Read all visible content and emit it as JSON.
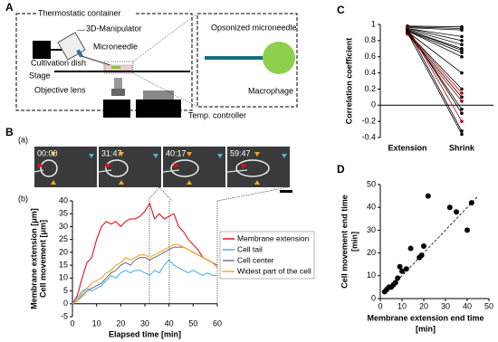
{
  "panel_labels": [
    "A",
    "B",
    "C",
    "D"
  ],
  "schematic": {
    "container": "Thermostatic container",
    "manipulator": "3D-Manipulator",
    "microneedle": "Microneedle",
    "dish": "Cultivation dish",
    "stage": "Stage",
    "objective": "Objective lens",
    "controller": "Temp. controller",
    "inset_needle": "Opsonized microneedle",
    "inset_cell": "Macrophage"
  },
  "micrographs": {
    "label": "(a)",
    "times": [
      "00:00",
      "31:47",
      "40:17",
      "59:47"
    ]
  },
  "chart_data": [
    {
      "type": "line",
      "label": "(b)",
      "y_label": [
        "Membrane extension [μm]",
        "Cell movement [μm]"
      ],
      "x_label": "Elapsed time [min]",
      "x": [
        0,
        2,
        4,
        6,
        8,
        10,
        12,
        14,
        16,
        18,
        20,
        22,
        24,
        26,
        28,
        30,
        32,
        34,
        36,
        38,
        40,
        42,
        44,
        46,
        48,
        50,
        52,
        54,
        56,
        58,
        60
      ],
      "series": [
        {
          "name": "Membrane extension",
          "color": "#e8101a",
          "values": [
            0,
            3,
            10,
            16,
            18,
            25,
            30,
            32,
            31,
            32,
            30,
            32,
            33,
            33,
            34,
            36,
            39,
            33,
            35,
            33,
            34,
            35,
            30,
            28,
            25,
            23,
            21,
            18,
            17,
            16,
            15
          ]
        },
        {
          "name": "Cell tail",
          "color": "#4fb3e8",
          "values": [
            0,
            2,
            5,
            6,
            5,
            6,
            7,
            9,
            11,
            10,
            12,
            13,
            12,
            13,
            13,
            12,
            11,
            13,
            12,
            15,
            17,
            15,
            14,
            13,
            12,
            13,
            12,
            11,
            12,
            11,
            11
          ]
        },
        {
          "name": "Cell center",
          "color": "#7a7096",
          "values": [
            0,
            1,
            3,
            5,
            6,
            7,
            8,
            10,
            12,
            13,
            15,
            16,
            15,
            17,
            18,
            18,
            17,
            18,
            19,
            20,
            21,
            22,
            22,
            22,
            21,
            20,
            19,
            18,
            17,
            16,
            15
          ]
        },
        {
          "name": "Widest part of the cell",
          "color": "#f0a81c",
          "values": [
            0,
            1,
            4,
            6,
            8,
            9,
            10,
            12,
            13,
            15,
            16,
            18,
            17,
            18,
            19,
            19,
            18,
            19,
            20,
            21,
            22,
            23,
            23,
            22,
            21,
            20,
            19,
            18,
            17,
            16,
            14
          ]
        }
      ],
      "xlim": [
        0,
        60
      ],
      "xticks": [
        0,
        10,
        20,
        30,
        40,
        50,
        60
      ],
      "ylim": [
        -5,
        40
      ],
      "yticks": [
        -5,
        0,
        5,
        10,
        15,
        20,
        25,
        30,
        35,
        40
      ],
      "legend": "right"
    },
    {
      "type": "slope",
      "y_label": "Correlation coefficient",
      "categories": [
        "Extension",
        "Shrink"
      ],
      "series": [
        {
          "color": "#000000",
          "values": [
            0.98,
            0.97
          ]
        },
        {
          "color": "#000000",
          "values": [
            0.97,
            0.95
          ]
        },
        {
          "color": "#000000",
          "values": [
            0.96,
            0.93
          ]
        },
        {
          "color": "#000000",
          "values": [
            0.95,
            0.85
          ]
        },
        {
          "color": "#000000",
          "values": [
            0.95,
            0.8
          ]
        },
        {
          "color": "#000000",
          "values": [
            0.94,
            0.75
          ]
        },
        {
          "color": "#000000",
          "values": [
            0.93,
            0.7
          ]
        },
        {
          "color": "#000000",
          "values": [
            0.93,
            0.68
          ]
        },
        {
          "color": "#000000",
          "values": [
            0.92,
            0.65
          ]
        },
        {
          "color": "#000000",
          "values": [
            0.92,
            0.6
          ]
        },
        {
          "color": "#000000",
          "values": [
            0.91,
            0.4
          ]
        },
        {
          "color": "#000000",
          "values": [
            0.9,
            0.2
          ]
        },
        {
          "color": "#c00000",
          "values": [
            0.9,
            0.15
          ]
        },
        {
          "color": "#000000",
          "values": [
            0.89,
            0.1
          ]
        },
        {
          "color": "#c00000",
          "values": [
            0.88,
            0.05
          ]
        },
        {
          "color": "#000000",
          "values": [
            0.93,
            -0.05
          ]
        },
        {
          "color": "#000000",
          "values": [
            0.95,
            -0.1
          ]
        },
        {
          "color": "#c00000",
          "values": [
            0.96,
            -0.2
          ]
        },
        {
          "color": "#000000",
          "values": [
            0.94,
            -0.32
          ]
        },
        {
          "color": "#000000",
          "values": [
            0.9,
            -0.36
          ]
        }
      ],
      "ylim": [
        -0.4,
        1
      ],
      "yticks": [
        -0.4,
        -0.2,
        0,
        0.2,
        0.4,
        0.6,
        0.8,
        1
      ]
    },
    {
      "type": "scatter",
      "x_label": [
        "Membrane extension end time",
        "[min]"
      ],
      "y_label": [
        "Cell movement end time",
        "[min]"
      ],
      "x": [
        2,
        3,
        4,
        5,
        6,
        7,
        8,
        9,
        10,
        12,
        14,
        18,
        19,
        20,
        22,
        32,
        35,
        40,
        42
      ],
      "y": [
        3,
        4,
        5,
        5,
        6,
        7,
        9,
        14,
        12,
        13,
        22,
        18,
        19,
        23,
        45,
        40,
        38,
        30,
        42
      ],
      "color": "#000000",
      "fit_line": {
        "x": [
          2,
          45
        ],
        "y": [
          2,
          45
        ]
      },
      "xlim": [
        0,
        50
      ],
      "xticks": [
        0,
        10,
        20,
        30,
        40,
        50
      ],
      "ylim": [
        0,
        50
      ],
      "yticks": [
        0,
        10,
        20,
        30,
        40,
        50
      ]
    }
  ]
}
